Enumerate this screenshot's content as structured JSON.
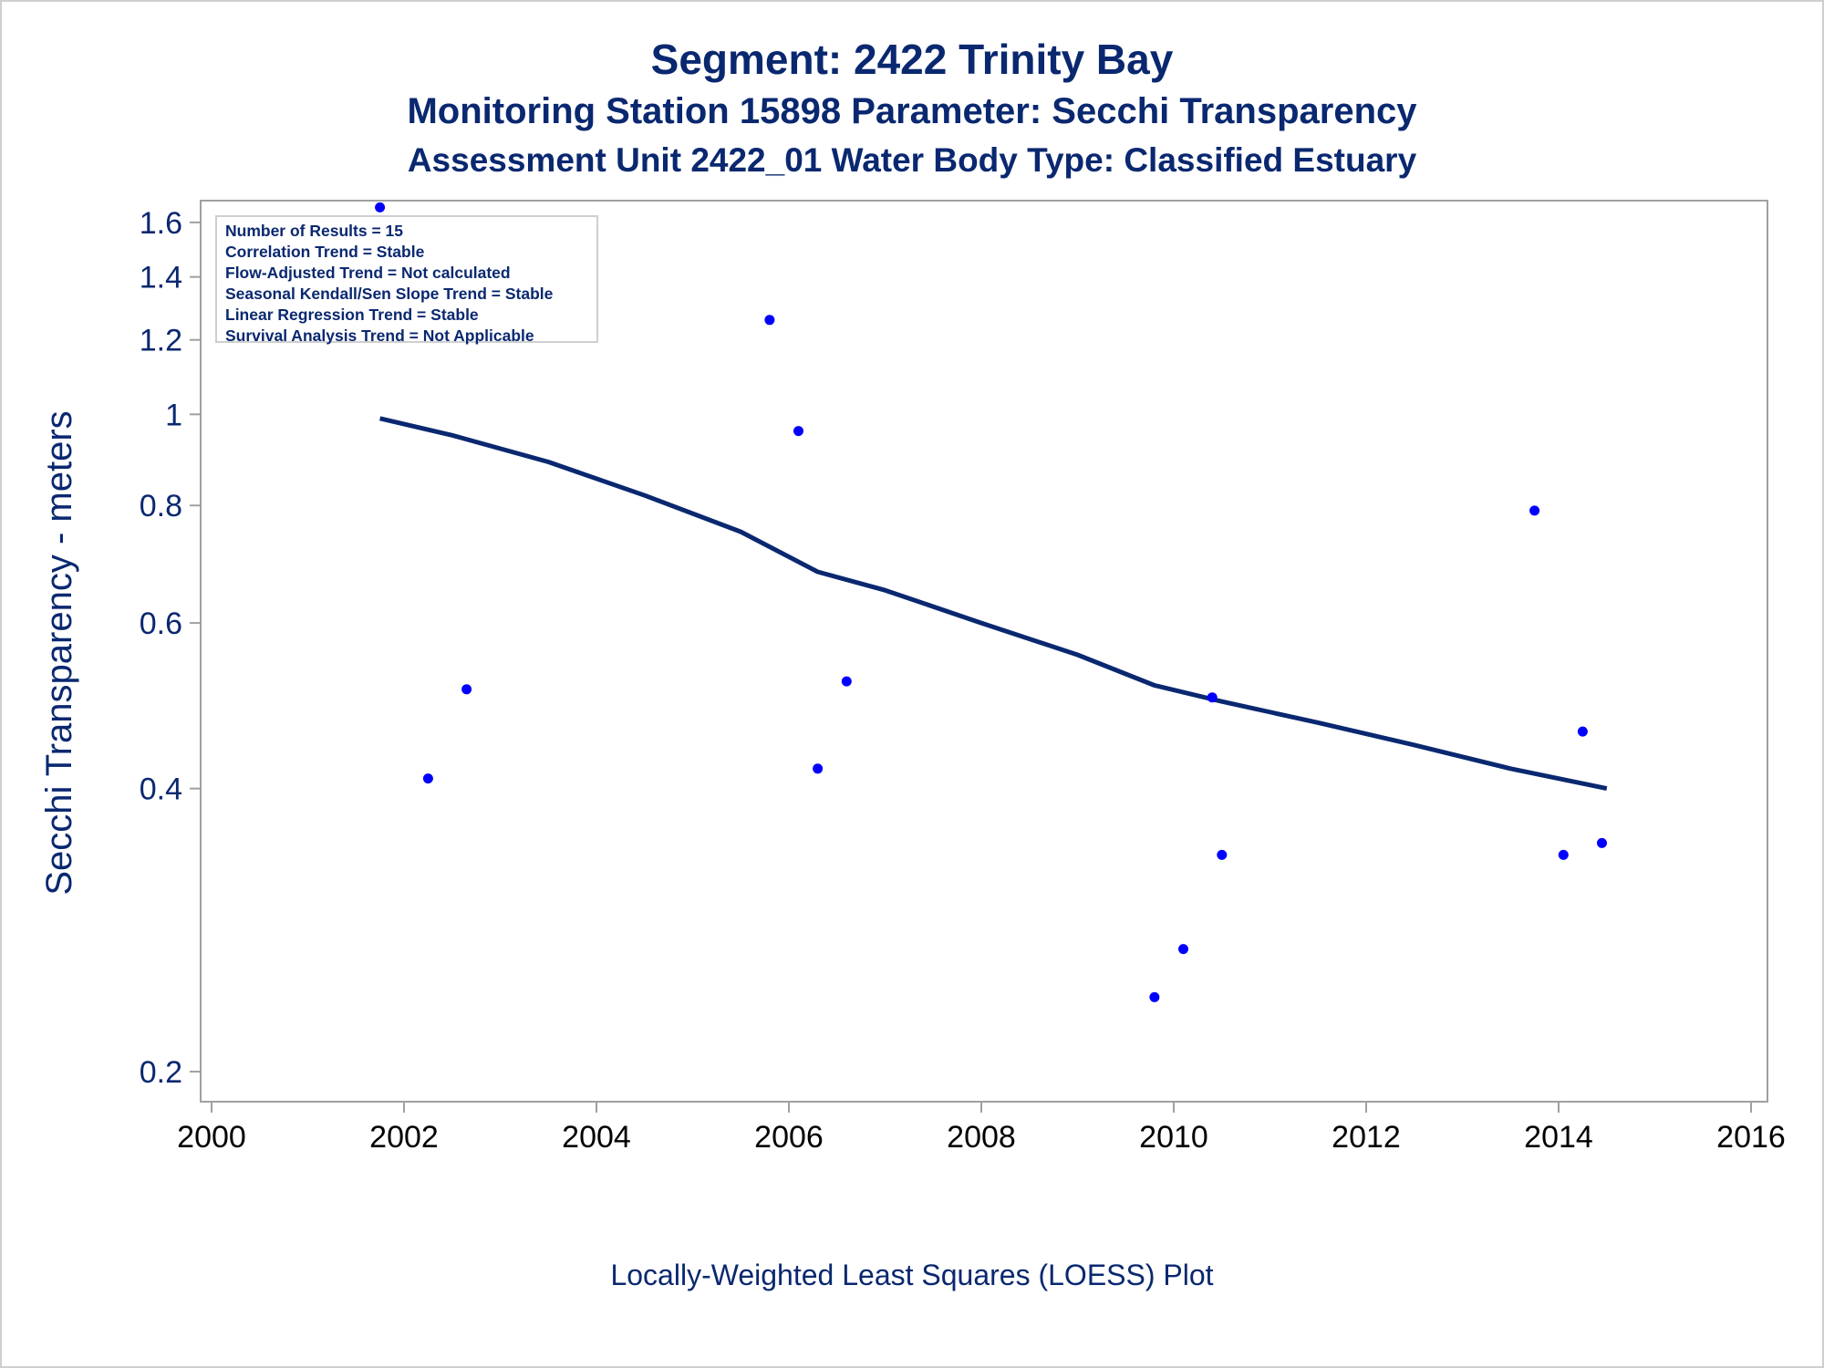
{
  "titles": {
    "line1": "Segment: 2422  Trinity Bay",
    "line2": "Monitoring Station 15898 Parameter: Secchi Transparency",
    "line3": "Assessment Unit 2422_01   Water Body Type: Classified Estuary"
  },
  "footnote": "Locally-Weighted Least Squares (LOESS) Plot",
  "stats": [
    "Number of Results = 15",
    "Correlation Trend = Stable",
    "Flow-Adjusted Trend = Not calculated",
    "Seasonal Kendall/Sen Slope Trend = Stable",
    "Linear Regression Trend = Stable",
    "Survival Analysis Trend = Not Applicable"
  ],
  "colors": {
    "text": "#0a2870",
    "points": "#0000ff",
    "loess_line": "#0a2870",
    "axis": "#a0a0a0"
  },
  "chart_data": {
    "type": "scatter",
    "ylabel": "Secchi Transparency - meters",
    "xlabel": "",
    "x_ticks": [
      2000,
      2002,
      2004,
      2006,
      2008,
      2010,
      2012,
      2014,
      2016
    ],
    "y_ticks": [
      0.2,
      0.4,
      0.6,
      0.8,
      1,
      1.2,
      1.4,
      1.6
    ],
    "y_tick_labels": [
      "0.2",
      "0.4",
      "0.6",
      "0.8",
      "1",
      "1.2",
      "1.4",
      "1.6"
    ],
    "xlim": [
      2000,
      2016
    ],
    "ylim": [
      0.19,
      1.68
    ],
    "y_scale": "log",
    "grid": false,
    "series": [
      {
        "type": "scatter",
        "x": [
          2001.75,
          2002.25,
          2002.65,
          2005.8,
          2006.1,
          2006.3,
          2006.6,
          2009.8,
          2010.1,
          2010.4,
          2010.5,
          2013.75,
          2014.05,
          2014.25,
          2014.45
        ],
        "y": [
          1.66,
          0.41,
          0.51,
          1.26,
          0.96,
          0.42,
          0.52,
          0.24,
          0.27,
          0.5,
          0.34,
          0.79,
          0.34,
          0.46,
          0.35
        ]
      },
      {
        "type": "line",
        "x": [
          2001.75,
          2002.5,
          2003.5,
          2004.5,
          2005.5,
          2006.3,
          2007.0,
          2008.0,
          2009.0,
          2009.8,
          2010.5,
          2011.5,
          2012.5,
          2013.5,
          2014.5
        ],
        "y": [
          0.99,
          0.95,
          0.89,
          0.82,
          0.75,
          0.68,
          0.65,
          0.6,
          0.555,
          0.515,
          0.495,
          0.47,
          0.445,
          0.42,
          0.4
        ]
      }
    ]
  }
}
